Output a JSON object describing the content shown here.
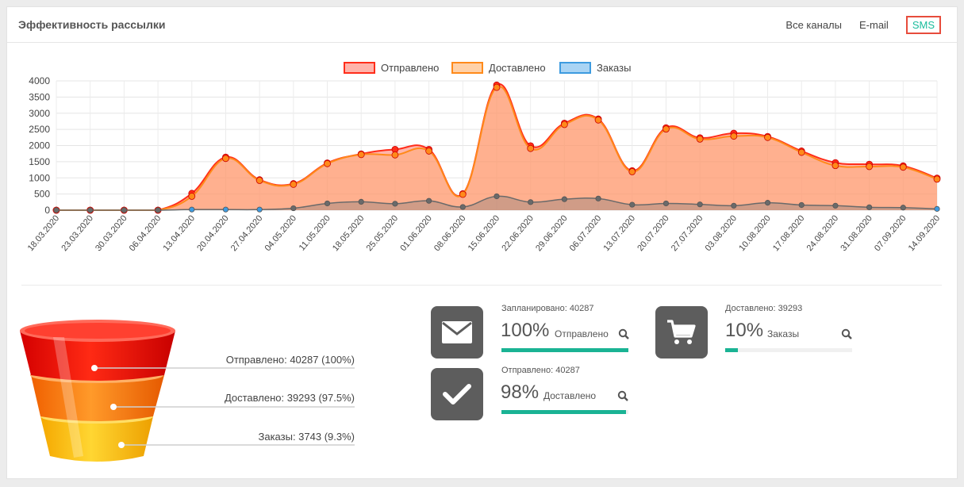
{
  "header": {
    "title": "Эффективность рассылки",
    "tabs": [
      {
        "label": "Все каналы",
        "active": false
      },
      {
        "label": "E-mail",
        "active": false
      },
      {
        "label": "SMS",
        "active": true
      }
    ]
  },
  "chart_data": {
    "type": "area",
    "legend": [
      "Отправлено",
      "Доставлено",
      "Заказы"
    ],
    "legend_position": "top-center",
    "ylim": [
      0,
      4000
    ],
    "yticks": [
      0,
      500,
      1000,
      1500,
      2000,
      2500,
      3000,
      3500,
      4000
    ],
    "grid": true,
    "categories": [
      "18.03.2020",
      "23.03.2020",
      "30.03.2020",
      "06.04.2020",
      "13.04.2020",
      "20.04.2020",
      "27.04.2020",
      "04.05.2020",
      "11.05.2020",
      "18.05.2020",
      "25.05.2020",
      "01.06.2020",
      "08.06.2020",
      "15.06.2020",
      "22.06.2020",
      "29.06.2020",
      "06.07.2020",
      "13.07.2020",
      "20.07.2020",
      "27.07.2020",
      "03.08.2020",
      "10.08.2020",
      "17.08.2020",
      "24.08.2020",
      "31.08.2020",
      "07.09.2020",
      "14.09.2020"
    ],
    "series": [
      {
        "name": "Отправлено",
        "color": "#ff2d1a",
        "fill": "rgba(255,120,100,0.55)",
        "values": [
          0,
          0,
          0,
          0,
          520,
          1640,
          940,
          820,
          1460,
          1740,
          1880,
          1880,
          510,
          3870,
          1990,
          2690,
          2820,
          1220,
          2550,
          2240,
          2380,
          2280,
          1830,
          1470,
          1420,
          1370,
          990
        ]
      },
      {
        "name": "Доставлено",
        "color": "#ff8a1a",
        "fill": "rgba(255,170,110,0.45)",
        "values": [
          0,
          0,
          0,
          0,
          430,
          1600,
          920,
          800,
          1440,
          1720,
          1710,
          1830,
          490,
          3800,
          1910,
          2650,
          2790,
          1190,
          2510,
          2200,
          2290,
          2250,
          1790,
          1380,
          1350,
          1330,
          960
        ]
      },
      {
        "name": "Заказы",
        "color": "#6a6a6a",
        "fill": "rgba(120,120,120,0.35)",
        "values": [
          0,
          0,
          0,
          0,
          20,
          20,
          20,
          60,
          210,
          260,
          200,
          290,
          100,
          430,
          250,
          340,
          360,
          170,
          210,
          180,
          140,
          230,
          160,
          140,
          90,
          80,
          40
        ]
      }
    ]
  },
  "funnel": {
    "items": [
      {
        "label": "Отправлено: 40287  (100%)",
        "color_top": "#ff2a14",
        "color_bottom": "#e60000"
      },
      {
        "label": "Доставлено: 39293  (97.5%)",
        "color_top": "#ff8c1a",
        "color_bottom": "#ff6a00"
      },
      {
        "label": "Заказы: 3743  (9.3%)",
        "color_top": "#ffcc1a",
        "color_bottom": "#ffae00"
      }
    ]
  },
  "stats": [
    {
      "icon": "envelope-icon",
      "sub": "Запланировано: 40287",
      "percent": "100%",
      "name": "Отправлено",
      "progress": 1.0
    },
    {
      "icon": "checkmark-icon",
      "sub": "Отправлено: 40287",
      "percent": "98%",
      "name": "Доставлено",
      "progress": 0.98
    },
    {
      "icon": "cart-icon",
      "sub": "Доставлено: 39293",
      "percent": "10%",
      "name": "Заказы",
      "progress": 0.1
    }
  ]
}
